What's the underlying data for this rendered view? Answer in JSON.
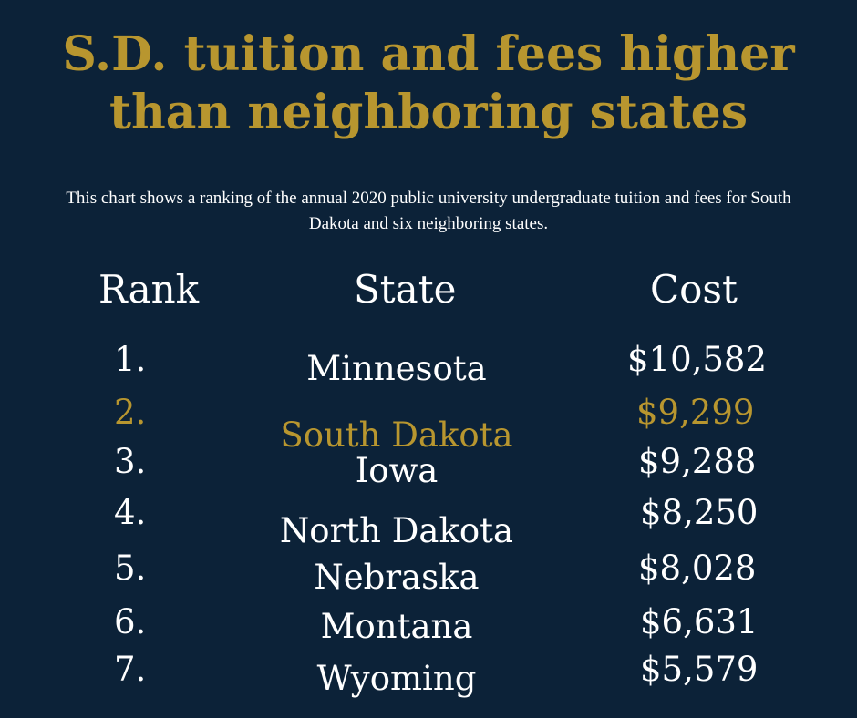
{
  "title": "S.D. tuition and fees higher than neighboring states",
  "subtitle": "This chart shows a ranking of the annual 2020 public university undergraduate tuition and fees for South Dakota and six neighboring states.",
  "colors": {
    "background": "#0c2238",
    "accent": "#b8962f",
    "text": "#ffffff"
  },
  "chart_data": {
    "type": "table",
    "columns": [
      "Rank",
      "State",
      "Cost"
    ],
    "highlight_state": "South Dakota",
    "rows": [
      {
        "rank": "1.",
        "state": "Minnesota",
        "cost": "$10,582"
      },
      {
        "rank": "2.",
        "state": "South Dakota",
        "cost": "$9,299"
      },
      {
        "rank": "3.",
        "state": "Iowa",
        "cost": "$9,288"
      },
      {
        "rank": "4.",
        "state": "North Dakota",
        "cost": "$8,250"
      },
      {
        "rank": "5.",
        "state": "Nebraska",
        "cost": "$8,028"
      },
      {
        "rank": "6.",
        "state": "Montana",
        "cost": "$6,631"
      },
      {
        "rank": "7.",
        "state": "Wyoming",
        "cost": "$5,579"
      }
    ]
  }
}
